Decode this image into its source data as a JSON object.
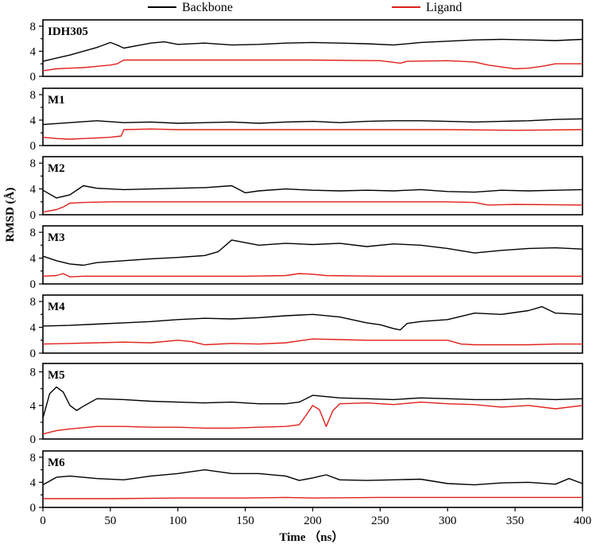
{
  "chart_data": {
    "type": "line",
    "xlabel": "Time （ns）",
    "ylabel": "RMSD (Å)",
    "xlim": [
      0,
      400
    ],
    "xticks": [
      "0",
      "50",
      "100",
      "150",
      "200",
      "250",
      "300",
      "350",
      "400"
    ],
    "ylim": [
      0,
      9
    ],
    "yticks": [
      "0",
      "4",
      "8"
    ],
    "legend": {
      "placement": "top",
      "entries": [
        {
          "name": "Backbone",
          "color": "#000000"
        },
        {
          "name": "Ligand",
          "color": "#e0201a"
        }
      ]
    },
    "panels": [
      {
        "label": "IDH305",
        "series": [
          {
            "name": "Backbone",
            "color": "#000000",
            "x": [
              0,
              10,
              20,
              30,
              40,
              50,
              55,
              60,
              70,
              80,
              90,
              100,
              120,
              140,
              160,
              180,
              200,
              220,
              240,
              260,
              280,
              300,
              320,
              340,
              360,
              380,
              400
            ],
            "y": [
              2.4,
              2.9,
              3.4,
              4.0,
              4.6,
              5.4,
              5.0,
              4.5,
              4.9,
              5.3,
              5.5,
              5.1,
              5.3,
              5.0,
              5.1,
              5.3,
              5.4,
              5.3,
              5.2,
              5.0,
              5.4,
              5.6,
              5.8,
              5.9,
              5.8,
              5.7,
              5.9
            ]
          },
          {
            "name": "Ligand",
            "color": "#e0201a",
            "x": [
              0,
              10,
              20,
              30,
              40,
              50,
              55,
              60,
              80,
              100,
              150,
              200,
              250,
              265,
              270,
              300,
              320,
              330,
              340,
              350,
              360,
              370,
              380,
              400
            ],
            "y": [
              0.9,
              1.2,
              1.3,
              1.4,
              1.6,
              1.8,
              2.0,
              2.6,
              2.6,
              2.6,
              2.6,
              2.6,
              2.5,
              2.1,
              2.4,
              2.5,
              2.3,
              1.8,
              1.5,
              1.2,
              1.3,
              1.6,
              2.0,
              2.0
            ]
          }
        ]
      },
      {
        "label": "M1",
        "series": [
          {
            "name": "Backbone",
            "color": "#000000",
            "x": [
              0,
              20,
              40,
              60,
              80,
              100,
              120,
              140,
              160,
              180,
              200,
              220,
              240,
              260,
              280,
              300,
              320,
              340,
              360,
              380,
              400
            ],
            "y": [
              3.3,
              3.6,
              3.9,
              3.6,
              3.7,
              3.5,
              3.6,
              3.7,
              3.5,
              3.7,
              3.8,
              3.6,
              3.8,
              3.9,
              3.9,
              3.8,
              3.7,
              3.8,
              3.9,
              4.1,
              4.2
            ]
          },
          {
            "name": "Ligand",
            "color": "#e0201a",
            "x": [
              0,
              10,
              20,
              30,
              40,
              50,
              58,
              60,
              80,
              100,
              150,
              200,
              250,
              300,
              350,
              400
            ],
            "y": [
              1.3,
              1.1,
              1.0,
              1.1,
              1.2,
              1.3,
              1.5,
              2.5,
              2.6,
              2.5,
              2.5,
              2.5,
              2.5,
              2.5,
              2.4,
              2.5
            ]
          }
        ]
      },
      {
        "label": "M2",
        "series": [
          {
            "name": "Backbone",
            "color": "#000000",
            "x": [
              0,
              10,
              20,
              30,
              40,
              60,
              80,
              100,
              120,
              140,
              150,
              160,
              180,
              200,
              220,
              240,
              260,
              280,
              300,
              320,
              340,
              360,
              380,
              400
            ],
            "y": [
              3.8,
              2.6,
              3.1,
              4.5,
              4.1,
              3.9,
              4.0,
              4.1,
              4.2,
              4.5,
              3.4,
              3.7,
              4.0,
              3.8,
              3.7,
              3.8,
              3.7,
              3.9,
              3.6,
              3.5,
              3.8,
              3.7,
              3.8,
              3.9
            ]
          },
          {
            "name": "Ligand",
            "color": "#e0201a",
            "x": [
              0,
              5,
              10,
              15,
              20,
              30,
              50,
              100,
              150,
              200,
              250,
              300,
              320,
              330,
              350,
              400
            ],
            "y": [
              0.4,
              0.6,
              0.8,
              1.2,
              1.8,
              1.9,
              2.0,
              2.0,
              2.0,
              2.0,
              2.0,
              2.0,
              1.9,
              1.5,
              1.6,
              1.5
            ]
          }
        ]
      },
      {
        "label": "M3",
        "series": [
          {
            "name": "Backbone",
            "color": "#000000",
            "x": [
              0,
              10,
              20,
              30,
              40,
              60,
              80,
              100,
              120,
              130,
              140,
              160,
              180,
              200,
              220,
              240,
              260,
              280,
              300,
              320,
              340,
              360,
              380,
              400
            ],
            "y": [
              4.3,
              3.6,
              3.1,
              2.9,
              3.3,
              3.6,
              3.9,
              4.1,
              4.4,
              5.0,
              6.8,
              6.0,
              6.3,
              6.1,
              6.3,
              5.8,
              6.2,
              6.0,
              5.5,
              4.8,
              5.2,
              5.5,
              5.6,
              5.4
            ]
          },
          {
            "name": "Ligand",
            "color": "#e0201a",
            "x": [
              0,
              10,
              15,
              20,
              30,
              50,
              100,
              150,
              180,
              190,
              200,
              210,
              250,
              300,
              350,
              400
            ],
            "y": [
              1.2,
              1.3,
              1.6,
              1.1,
              1.2,
              1.2,
              1.2,
              1.2,
              1.3,
              1.6,
              1.5,
              1.3,
              1.2,
              1.2,
              1.2,
              1.2
            ]
          }
        ]
      },
      {
        "label": "M4",
        "series": [
          {
            "name": "Backbone",
            "color": "#000000",
            "x": [
              0,
              20,
              40,
              60,
              80,
              100,
              120,
              140,
              160,
              180,
              200,
              220,
              240,
              250,
              260,
              265,
              270,
              280,
              300,
              320,
              340,
              360,
              370,
              380,
              400
            ],
            "y": [
              4.2,
              4.3,
              4.5,
              4.7,
              4.9,
              5.2,
              5.4,
              5.3,
              5.5,
              5.8,
              6.0,
              5.6,
              4.7,
              4.4,
              3.8,
              3.6,
              4.6,
              4.9,
              5.2,
              6.2,
              6.0,
              6.6,
              7.2,
              6.2,
              6.0
            ]
          },
          {
            "name": "Ligand",
            "color": "#e0201a",
            "x": [
              0,
              20,
              40,
              60,
              80,
              100,
              110,
              120,
              140,
              160,
              180,
              200,
              220,
              240,
              260,
              280,
              300,
              310,
              320,
              340,
              360,
              380,
              400
            ],
            "y": [
              1.4,
              1.5,
              1.6,
              1.7,
              1.6,
              2.0,
              1.8,
              1.3,
              1.5,
              1.4,
              1.6,
              2.2,
              2.1,
              2.0,
              2.0,
              2.0,
              2.0,
              1.4,
              1.3,
              1.3,
              1.3,
              1.4,
              1.4
            ]
          }
        ]
      },
      {
        "label": "M5",
        "series": [
          {
            "name": "Backbone",
            "color": "#000000",
            "x": [
              0,
              5,
              10,
              15,
              20,
              25,
              30,
              40,
              60,
              80,
              100,
              120,
              140,
              160,
              180,
              190,
              200,
              220,
              240,
              260,
              280,
              300,
              320,
              340,
              360,
              380,
              400
            ],
            "y": [
              2.5,
              5.4,
              6.2,
              5.6,
              4.0,
              3.4,
              3.9,
              4.8,
              4.7,
              4.5,
              4.4,
              4.3,
              4.4,
              4.2,
              4.2,
              4.4,
              5.2,
              4.9,
              4.8,
              4.7,
              4.9,
              4.8,
              4.7,
              4.7,
              4.8,
              4.7,
              4.8
            ]
          },
          {
            "name": "Ligand",
            "color": "#e0201a",
            "x": [
              0,
              10,
              20,
              40,
              60,
              80,
              100,
              120,
              140,
              160,
              180,
              190,
              195,
              200,
              205,
              210,
              215,
              220,
              240,
              260,
              280,
              300,
              320,
              340,
              360,
              380,
              400
            ],
            "y": [
              0.6,
              1.0,
              1.2,
              1.5,
              1.5,
              1.4,
              1.4,
              1.3,
              1.3,
              1.4,
              1.5,
              1.7,
              2.8,
              4.0,
              3.5,
              1.5,
              3.4,
              4.2,
              4.3,
              4.1,
              4.4,
              4.2,
              4.1,
              3.8,
              4.0,
              3.6,
              4.0
            ]
          }
        ]
      },
      {
        "label": "M6",
        "series": [
          {
            "name": "Backbone",
            "color": "#000000",
            "x": [
              0,
              10,
              20,
              40,
              60,
              80,
              100,
              120,
              140,
              160,
              180,
              190,
              200,
              210,
              220,
              240,
              260,
              280,
              300,
              320,
              340,
              360,
              380,
              390,
              400
            ],
            "y": [
              3.6,
              4.8,
              5.0,
              4.6,
              4.4,
              5.0,
              5.4,
              6.0,
              5.4,
              5.4,
              5.0,
              4.3,
              4.7,
              5.2,
              4.4,
              4.3,
              4.4,
              4.5,
              3.8,
              3.6,
              3.9,
              4.0,
              3.7,
              4.6,
              3.8
            ]
          },
          {
            "name": "Ligand",
            "color": "#e0201a",
            "x": [
              0,
              50,
              100,
              150,
              180,
              200,
              250,
              300,
              350,
              400
            ],
            "y": [
              1.4,
              1.4,
              1.5,
              1.5,
              1.6,
              1.5,
              1.6,
              1.6,
              1.6,
              1.6
            ]
          }
        ]
      }
    ]
  }
}
